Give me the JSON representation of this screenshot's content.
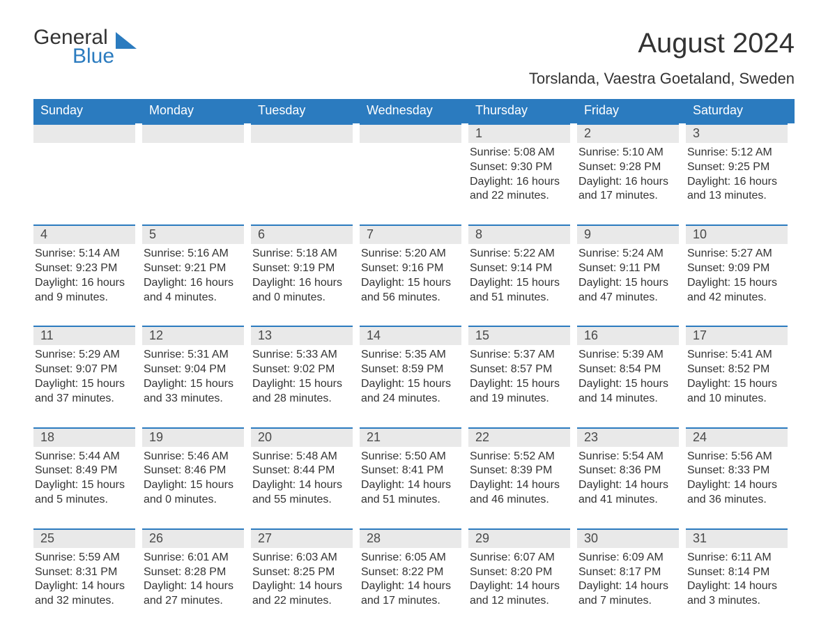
{
  "brand": {
    "general": "General",
    "blue": "Blue",
    "tri_color": "#2b7bbf"
  },
  "title": "August 2024",
  "subtitle": "Torslanda, Vaestra Goetaland, Sweden",
  "colors": {
    "header_bg": "#2b7bbf",
    "header_text": "#ffffff",
    "strip_bg": "#e9e9e9",
    "strip_border": "#2b7bbf",
    "body_text": "#333333"
  },
  "fontsize": {
    "title": 40,
    "subtitle": 22,
    "dow": 18,
    "daynum": 18,
    "body": 16
  },
  "dow": [
    "Sunday",
    "Monday",
    "Tuesday",
    "Wednesday",
    "Thursday",
    "Friday",
    "Saturday"
  ],
  "weeks": [
    [
      {
        "n": "",
        "sr": "",
        "ss": "",
        "dl": ""
      },
      {
        "n": "",
        "sr": "",
        "ss": "",
        "dl": ""
      },
      {
        "n": "",
        "sr": "",
        "ss": "",
        "dl": ""
      },
      {
        "n": "",
        "sr": "",
        "ss": "",
        "dl": ""
      },
      {
        "n": "1",
        "sr": "Sunrise: 5:08 AM",
        "ss": "Sunset: 9:30 PM",
        "dl": "Daylight: 16 hours and 22 minutes."
      },
      {
        "n": "2",
        "sr": "Sunrise: 5:10 AM",
        "ss": "Sunset: 9:28 PM",
        "dl": "Daylight: 16 hours and 17 minutes."
      },
      {
        "n": "3",
        "sr": "Sunrise: 5:12 AM",
        "ss": "Sunset: 9:25 PM",
        "dl": "Daylight: 16 hours and 13 minutes."
      }
    ],
    [
      {
        "n": "4",
        "sr": "Sunrise: 5:14 AM",
        "ss": "Sunset: 9:23 PM",
        "dl": "Daylight: 16 hours and 9 minutes."
      },
      {
        "n": "5",
        "sr": "Sunrise: 5:16 AM",
        "ss": "Sunset: 9:21 PM",
        "dl": "Daylight: 16 hours and 4 minutes."
      },
      {
        "n": "6",
        "sr": "Sunrise: 5:18 AM",
        "ss": "Sunset: 9:19 PM",
        "dl": "Daylight: 16 hours and 0 minutes."
      },
      {
        "n": "7",
        "sr": "Sunrise: 5:20 AM",
        "ss": "Sunset: 9:16 PM",
        "dl": "Daylight: 15 hours and 56 minutes."
      },
      {
        "n": "8",
        "sr": "Sunrise: 5:22 AM",
        "ss": "Sunset: 9:14 PM",
        "dl": "Daylight: 15 hours and 51 minutes."
      },
      {
        "n": "9",
        "sr": "Sunrise: 5:24 AM",
        "ss": "Sunset: 9:11 PM",
        "dl": "Daylight: 15 hours and 47 minutes."
      },
      {
        "n": "10",
        "sr": "Sunrise: 5:27 AM",
        "ss": "Sunset: 9:09 PM",
        "dl": "Daylight: 15 hours and 42 minutes."
      }
    ],
    [
      {
        "n": "11",
        "sr": "Sunrise: 5:29 AM",
        "ss": "Sunset: 9:07 PM",
        "dl": "Daylight: 15 hours and 37 minutes."
      },
      {
        "n": "12",
        "sr": "Sunrise: 5:31 AM",
        "ss": "Sunset: 9:04 PM",
        "dl": "Daylight: 15 hours and 33 minutes."
      },
      {
        "n": "13",
        "sr": "Sunrise: 5:33 AM",
        "ss": "Sunset: 9:02 PM",
        "dl": "Daylight: 15 hours and 28 minutes."
      },
      {
        "n": "14",
        "sr": "Sunrise: 5:35 AM",
        "ss": "Sunset: 8:59 PM",
        "dl": "Daylight: 15 hours and 24 minutes."
      },
      {
        "n": "15",
        "sr": "Sunrise: 5:37 AM",
        "ss": "Sunset: 8:57 PM",
        "dl": "Daylight: 15 hours and 19 minutes."
      },
      {
        "n": "16",
        "sr": "Sunrise: 5:39 AM",
        "ss": "Sunset: 8:54 PM",
        "dl": "Daylight: 15 hours and 14 minutes."
      },
      {
        "n": "17",
        "sr": "Sunrise: 5:41 AM",
        "ss": "Sunset: 8:52 PM",
        "dl": "Daylight: 15 hours and 10 minutes."
      }
    ],
    [
      {
        "n": "18",
        "sr": "Sunrise: 5:44 AM",
        "ss": "Sunset: 8:49 PM",
        "dl": "Daylight: 15 hours and 5 minutes."
      },
      {
        "n": "19",
        "sr": "Sunrise: 5:46 AM",
        "ss": "Sunset: 8:46 PM",
        "dl": "Daylight: 15 hours and 0 minutes."
      },
      {
        "n": "20",
        "sr": "Sunrise: 5:48 AM",
        "ss": "Sunset: 8:44 PM",
        "dl": "Daylight: 14 hours and 55 minutes."
      },
      {
        "n": "21",
        "sr": "Sunrise: 5:50 AM",
        "ss": "Sunset: 8:41 PM",
        "dl": "Daylight: 14 hours and 51 minutes."
      },
      {
        "n": "22",
        "sr": "Sunrise: 5:52 AM",
        "ss": "Sunset: 8:39 PM",
        "dl": "Daylight: 14 hours and 46 minutes."
      },
      {
        "n": "23",
        "sr": "Sunrise: 5:54 AM",
        "ss": "Sunset: 8:36 PM",
        "dl": "Daylight: 14 hours and 41 minutes."
      },
      {
        "n": "24",
        "sr": "Sunrise: 5:56 AM",
        "ss": "Sunset: 8:33 PM",
        "dl": "Daylight: 14 hours and 36 minutes."
      }
    ],
    [
      {
        "n": "25",
        "sr": "Sunrise: 5:59 AM",
        "ss": "Sunset: 8:31 PM",
        "dl": "Daylight: 14 hours and 32 minutes."
      },
      {
        "n": "26",
        "sr": "Sunrise: 6:01 AM",
        "ss": "Sunset: 8:28 PM",
        "dl": "Daylight: 14 hours and 27 minutes."
      },
      {
        "n": "27",
        "sr": "Sunrise: 6:03 AM",
        "ss": "Sunset: 8:25 PM",
        "dl": "Daylight: 14 hours and 22 minutes."
      },
      {
        "n": "28",
        "sr": "Sunrise: 6:05 AM",
        "ss": "Sunset: 8:22 PM",
        "dl": "Daylight: 14 hours and 17 minutes."
      },
      {
        "n": "29",
        "sr": "Sunrise: 6:07 AM",
        "ss": "Sunset: 8:20 PM",
        "dl": "Daylight: 14 hours and 12 minutes."
      },
      {
        "n": "30",
        "sr": "Sunrise: 6:09 AM",
        "ss": "Sunset: 8:17 PM",
        "dl": "Daylight: 14 hours and 7 minutes."
      },
      {
        "n": "31",
        "sr": "Sunrise: 6:11 AM",
        "ss": "Sunset: 8:14 PM",
        "dl": "Daylight: 14 hours and 3 minutes."
      }
    ]
  ]
}
